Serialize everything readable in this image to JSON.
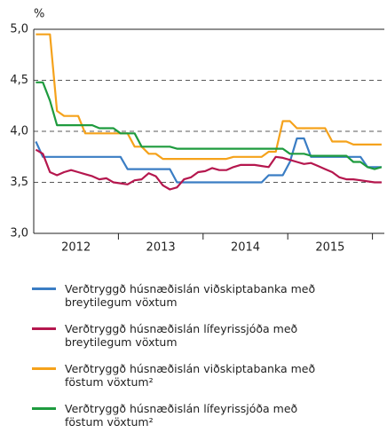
{
  "chart_data": {
    "type": "line",
    "unit_label": "%",
    "ylim": [
      3.0,
      5.0
    ],
    "yticks": [
      {
        "value": 3.0,
        "label": "3,0"
      },
      {
        "value": 3.5,
        "label": "3,5"
      },
      {
        "value": 4.0,
        "label": "4,0"
      },
      {
        "value": 4.5,
        "label": "4,5"
      },
      {
        "value": 5.0,
        "label": "5,0"
      }
    ],
    "grid": true,
    "year_labels": [
      "2012",
      "2013",
      "2014",
      "2015"
    ],
    "series": [
      {
        "name": "Verðtryggð húsnæðislán viðskiptabanka með breytilegum vöxtum",
        "color": "#3a7dc4",
        "values": [
          3.9,
          3.75,
          3.75,
          3.75,
          3.75,
          3.75,
          3.75,
          3.75,
          3.75,
          3.75,
          3.75,
          3.75,
          3.75,
          3.63,
          3.63,
          3.63,
          3.63,
          3.63,
          3.63,
          3.63,
          3.5,
          3.5,
          3.5,
          3.5,
          3.5,
          3.5,
          3.5,
          3.5,
          3.5,
          3.5,
          3.5,
          3.5,
          3.5,
          3.57,
          3.57,
          3.57,
          3.7,
          3.93,
          3.93,
          3.75,
          3.75,
          3.75,
          3.75,
          3.75,
          3.75,
          3.75,
          3.75,
          3.65,
          3.65,
          3.65
        ]
      },
      {
        "name": "Verðtryggð húsnæðislán lífeyrissjóða með breytilegum vöxtum",
        "color": "#b5174e",
        "values": [
          3.82,
          3.78,
          3.6,
          3.57,
          3.6,
          3.62,
          3.6,
          3.58,
          3.56,
          3.53,
          3.54,
          3.5,
          3.49,
          3.48,
          3.52,
          3.53,
          3.59,
          3.56,
          3.47,
          3.43,
          3.45,
          3.53,
          3.55,
          3.6,
          3.61,
          3.64,
          3.62,
          3.62,
          3.65,
          3.67,
          3.67,
          3.67,
          3.66,
          3.65,
          3.75,
          3.74,
          3.72,
          3.7,
          3.68,
          3.69,
          3.66,
          3.63,
          3.6,
          3.55,
          3.53,
          3.53,
          3.52,
          3.51,
          3.5,
          3.5
        ]
      },
      {
        "name": "Verðtryggð húsnæðislán viðskiptabanka með föstum vöxtum²",
        "color": "#f5a21b",
        "values": [
          4.95,
          4.95,
          4.95,
          4.2,
          4.15,
          4.15,
          4.15,
          3.98,
          3.98,
          3.98,
          3.98,
          3.98,
          3.98,
          3.98,
          3.85,
          3.85,
          3.78,
          3.78,
          3.73,
          3.73,
          3.73,
          3.73,
          3.73,
          3.73,
          3.73,
          3.73,
          3.73,
          3.73,
          3.75,
          3.75,
          3.75,
          3.75,
          3.75,
          3.8,
          3.8,
          4.1,
          4.1,
          4.03,
          4.03,
          4.03,
          4.03,
          4.03,
          3.9,
          3.9,
          3.9,
          3.87,
          3.87,
          3.87,
          3.87,
          3.87
        ]
      },
      {
        "name": "Verðtryggð húsnæðislán lífeyrissjóða með föstum vöxtum²",
        "color": "#1e9b3e",
        "values": [
          4.48,
          4.48,
          4.3,
          4.06,
          4.06,
          4.06,
          4.06,
          4.06,
          4.06,
          4.03,
          4.03,
          4.03,
          3.98,
          3.98,
          3.98,
          3.85,
          3.85,
          3.85,
          3.85,
          3.85,
          3.83,
          3.83,
          3.83,
          3.83,
          3.83,
          3.83,
          3.83,
          3.83,
          3.83,
          3.83,
          3.83,
          3.83,
          3.83,
          3.83,
          3.83,
          3.83,
          3.78,
          3.78,
          3.78,
          3.76,
          3.76,
          3.76,
          3.76,
          3.76,
          3.76,
          3.7,
          3.7,
          3.65,
          3.63,
          3.65
        ]
      }
    ]
  }
}
